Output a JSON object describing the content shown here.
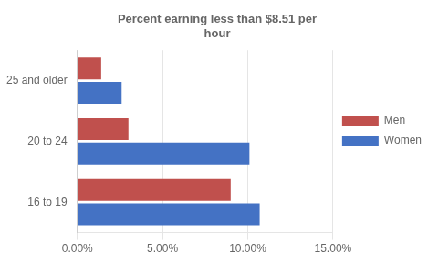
{
  "chart_data": {
    "type": "bar",
    "orientation": "horizontal",
    "title": "Percent earning less than $8.51 per\nhour",
    "categories": [
      "16 to 19",
      "20 to 24",
      "25 and older"
    ],
    "series": [
      {
        "name": "Men",
        "color": "#C0504D",
        "values": [
          0.09,
          0.03,
          0.014
        ]
      },
      {
        "name": "Women",
        "color": "#4472C4",
        "values": [
          0.107,
          0.101,
          0.026
        ]
      }
    ],
    "xlim": [
      0,
      0.15
    ],
    "xticks": [
      {
        "value": 0.0,
        "label": "0.00%"
      },
      {
        "value": 0.05,
        "label": "5.00%"
      },
      {
        "value": 0.1,
        "label": "10.00%"
      },
      {
        "value": 0.15,
        "label": "15.00%"
      }
    ],
    "grid": true,
    "legend": "right"
  }
}
